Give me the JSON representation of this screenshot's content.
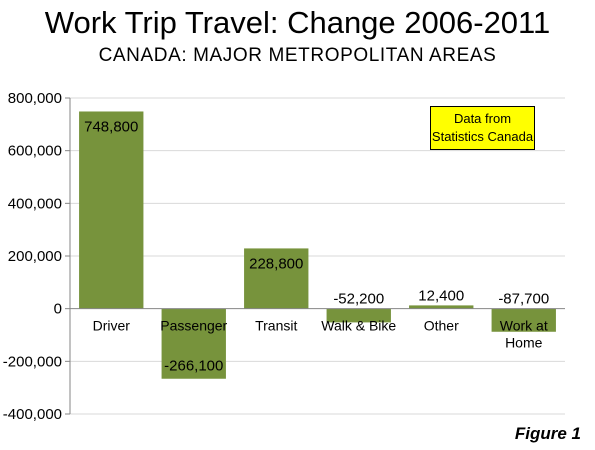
{
  "header": {
    "title": "Work Trip Travel: Change 2006-2011",
    "subtitle": "CANADA: MAJOR METROPOLITAN AREAS"
  },
  "note": {
    "line1": "Data from",
    "line2": "Statistics Canada",
    "background": "#ffff00"
  },
  "figure_label": "Figure 1",
  "colors": {
    "bar": "#77933c",
    "gridline": "#d9d9d9",
    "axis": "#868686"
  },
  "chart_data": {
    "type": "bar",
    "title": "Work Trip Travel: Change 2006-2011",
    "subtitle": "CANADA: MAJOR METROPOLITAN AREAS",
    "categories": [
      [
        "Driver"
      ],
      [
        "Passenger"
      ],
      [
        "Transit"
      ],
      [
        "Walk & Bike"
      ],
      [
        "Other"
      ],
      [
        "Work at",
        "Home"
      ]
    ],
    "values": [
      748800,
      -266100,
      228800,
      -52200,
      12400,
      -87700
    ],
    "value_labels": [
      "748,800",
      "-266,100",
      "228,800",
      "-52,200",
      "12,400",
      "-87,700"
    ],
    "ylim": [
      -400000,
      800000
    ],
    "yticks": [
      800000,
      600000,
      400000,
      200000,
      0,
      -200000,
      -400000
    ],
    "ytick_labels": [
      "800,000",
      "600,000",
      "400,000",
      "200,000",
      "0",
      "-200,000",
      "-400,000"
    ],
    "xlabel": "",
    "ylabel": "",
    "grid": true,
    "legend": "none"
  }
}
